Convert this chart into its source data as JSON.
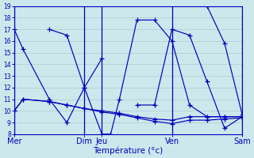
{
  "xlabel": "Température (°c)",
  "background_color": "#cce8ec",
  "grid_color": "#aacccc",
  "line_color": "#0000bb",
  "ylim": [
    8,
    19
  ],
  "yticks": [
    8,
    9,
    10,
    11,
    12,
    13,
    14,
    15,
    16,
    17,
    18,
    19
  ],
  "xlim": [
    0,
    52
  ],
  "day_tick_positions": [
    0,
    16,
    20,
    36,
    52
  ],
  "day_labels": [
    "Mer",
    "Dim",
    "Jeu",
    "Ven",
    "Sam"
  ],
  "series": [
    {
      "x": [
        0,
        2,
        8,
        12,
        16,
        20
      ],
      "y": [
        17.0,
        15.3,
        11.0,
        9.0,
        12.0,
        14.5
      ]
    },
    {
      "x": [
        0,
        2,
        8,
        12,
        16,
        20,
        24,
        28,
        32,
        36,
        40,
        44,
        48,
        52
      ],
      "y": [
        10.0,
        11.0,
        10.8,
        10.5,
        10.2,
        10.0,
        9.8,
        9.5,
        9.3,
        9.2,
        9.5,
        9.5,
        9.5,
        9.5
      ]
    },
    {
      "x": [
        0,
        2,
        8,
        12,
        16,
        20,
        24,
        28,
        32,
        36,
        40,
        44,
        48,
        52
      ],
      "y": [
        10.0,
        11.0,
        10.8,
        10.5,
        10.2,
        9.9,
        9.7,
        9.4,
        9.1,
        8.9,
        9.2,
        9.2,
        9.3,
        9.4
      ]
    },
    {
      "x": [
        8,
        12,
        16,
        20,
        22,
        24,
        28,
        32,
        36,
        40,
        44,
        48,
        52
      ],
      "y": [
        17.0,
        16.5,
        12.0,
        8.0,
        8.0,
        11.0,
        17.8,
        17.8,
        16.0,
        10.5,
        9.5,
        9.5,
        9.5
      ]
    },
    {
      "x": [
        28,
        32,
        36,
        40,
        44,
        48,
        52
      ],
      "y": [
        10.5,
        10.5,
        17.0,
        16.5,
        12.5,
        8.5,
        9.5
      ]
    },
    {
      "x": [
        44,
        48,
        52
      ],
      "y": [
        19.0,
        15.8,
        9.7
      ]
    }
  ]
}
